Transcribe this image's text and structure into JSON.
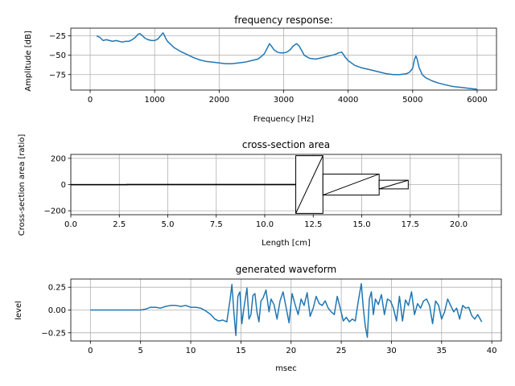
{
  "chart_data": [
    {
      "type": "line",
      "title": "frequency response:",
      "xlabel": "Frequency [Hz]",
      "ylabel": "Amplitude [dB]",
      "xlim": [
        -300,
        6300
      ],
      "ylim": [
        -95,
        -15
      ],
      "xticks": [
        0,
        1000,
        2000,
        3000,
        4000,
        5000,
        6000
      ],
      "xtick_labels": [
        "0",
        "1000",
        "2000",
        "3000",
        "4000",
        "5000",
        "6000"
      ],
      "yticks": [
        -25,
        -50,
        -75
      ],
      "ytick_labels": [
        "−25",
        "−50",
        "−75"
      ],
      "grid": true,
      "color": "#1f77b4",
      "series": [
        {
          "name": "response",
          "x": [
            100,
            150,
            200,
            250,
            300,
            350,
            400,
            450,
            500,
            550,
            600,
            650,
            700,
            740,
            770,
            800,
            850,
            900,
            950,
            1000,
            1050,
            1100,
            1130,
            1150,
            1170,
            1200,
            1250,
            1300,
            1400,
            1500,
            1600,
            1700,
            1800,
            1900,
            2000,
            2100,
            2200,
            2300,
            2400,
            2500,
            2600,
            2650,
            2700,
            2750,
            2780,
            2800,
            2850,
            2900,
            2950,
            3000,
            3050,
            3100,
            3150,
            3200,
            3240,
            3280,
            3320,
            3400,
            3500,
            3600,
            3700,
            3800,
            3850,
            3900,
            3920,
            3950,
            4000,
            4100,
            4200,
            4300,
            4400,
            4500,
            4600,
            4700,
            4800,
            4900,
            4950,
            5000,
            5030,
            5050,
            5070,
            5100,
            5150,
            5200,
            5300,
            5400,
            5500,
            5600,
            5700,
            5800,
            5900,
            6000
          ],
          "y": [
            -25,
            -27,
            -31,
            -30,
            -31,
            -32,
            -31,
            -32,
            -33,
            -32,
            -32,
            -30,
            -27,
            -23,
            -22,
            -24,
            -28,
            -30,
            -31,
            -31,
            -29,
            -24,
            -21,
            -24,
            -28,
            -32,
            -36,
            -40,
            -45,
            -49,
            -53,
            -56,
            -58,
            -59,
            -60,
            -61,
            -61,
            -60,
            -59,
            -57,
            -55,
            -52,
            -48,
            -40,
            -35,
            -37,
            -43,
            -46,
            -47,
            -47,
            -46,
            -43,
            -38,
            -35,
            -38,
            -44,
            -50,
            -54,
            -55,
            -53,
            -51,
            -49,
            -47,
            -46,
            -48,
            -52,
            -57,
            -63,
            -66,
            -68,
            -70,
            -72,
            -74,
            -75,
            -75,
            -74,
            -72,
            -67,
            -55,
            -51,
            -55,
            -66,
            -75,
            -79,
            -83,
            -86,
            -88,
            -90,
            -91,
            -92,
            -93,
            -94
          ]
        }
      ]
    },
    {
      "type": "area",
      "title": "cross-section area",
      "xlabel": "Length [cm]",
      "ylabel": "Cross-section area [ratio]",
      "xlim": [
        0,
        22.2
      ],
      "ylim": [
        -230,
        230
      ],
      "xticks": [
        0,
        2.5,
        5,
        7.5,
        10,
        12.5,
        15,
        17.5,
        20
      ],
      "xtick_labels": [
        "0.0",
        "2.5",
        "5.0",
        "7.5",
        "10.0",
        "12.5",
        "15.0",
        "17.5",
        "20.0"
      ],
      "yticks": [
        200,
        0,
        -200
      ],
      "ytick_labels": [
        "200",
        "0",
        "−200"
      ],
      "grid": true,
      "segments": [
        {
          "x0": 0,
          "x1": 2.9,
          "half_area": 1
        },
        {
          "x0": 2.9,
          "x1": 11.6,
          "half_area": 2
        },
        {
          "x0": 11.6,
          "x1": 13.0,
          "half_area": 220
        },
        {
          "x0": 13.0,
          "x1": 15.9,
          "half_area": 80
        },
        {
          "x0": 15.9,
          "x1": 17.4,
          "half_area": 33
        }
      ]
    },
    {
      "type": "line",
      "title": "generated waveform",
      "xlabel": "msec",
      "ylabel": "level",
      "xlim": [
        -1.95,
        40.95
      ],
      "ylim": [
        -0.34,
        0.34
      ],
      "xticks": [
        0,
        5,
        10,
        15,
        20,
        25,
        30,
        35,
        40
      ],
      "xtick_labels": [
        "0",
        "5",
        "10",
        "15",
        "20",
        "25",
        "30",
        "35",
        "40"
      ],
      "yticks": [
        0.25,
        0.0,
        -0.25
      ],
      "ytick_labels": [
        "0.25",
        "0.00",
        "−0.25"
      ],
      "grid": true,
      "color": "#1f77b4",
      "series": [
        {
          "name": "waveform",
          "x": [
            0,
            5,
            5.5,
            6,
            6.5,
            7,
            7.5,
            8,
            8.5,
            9,
            9.5,
            10,
            10.5,
            11,
            11.5,
            12,
            12.4,
            12.8,
            13.2,
            13.6,
            13.9,
            14.1,
            14.3,
            14.5,
            14.7,
            14.9,
            15.1,
            15.3,
            15.6,
            15.8,
            16,
            16.2,
            16.4,
            16.6,
            16.8,
            17,
            17.2,
            17.5,
            17.8,
            18,
            18.3,
            18.6,
            18.9,
            19.2,
            19.5,
            19.8,
            20.1,
            20.4,
            20.7,
            21,
            21.3,
            21.6,
            21.9,
            22.2,
            22.5,
            22.8,
            23.1,
            23.4,
            23.7,
            24,
            24.3,
            24.6,
            24.9,
            25.2,
            25.5,
            25.8,
            26.1,
            26.4,
            26.7,
            27,
            27.2,
            27.4,
            27.6,
            27.8,
            28,
            28.2,
            28.4,
            28.7,
            29,
            29.3,
            29.6,
            29.9,
            30.2,
            30.5,
            30.8,
            31.1,
            31.4,
            31.7,
            32,
            32.3,
            32.6,
            32.9,
            33.2,
            33.5,
            33.8,
            34.1,
            34.4,
            34.7,
            35,
            35.3,
            35.6,
            35.9,
            36.2,
            36.5,
            36.8,
            37.1,
            37.4,
            37.7,
            38,
            38.3,
            38.6,
            39
          ],
          "y": [
            0,
            0,
            0.01,
            0.03,
            0.03,
            0.02,
            0.04,
            0.05,
            0.05,
            0.04,
            0.05,
            0.03,
            0.03,
            0.02,
            -0.01,
            -0.05,
            -0.1,
            -0.12,
            -0.11,
            -0.13,
            0.1,
            0.28,
            -0.03,
            -0.28,
            0.15,
            0.2,
            -0.15,
            0.02,
            0.24,
            -0.1,
            -0.05,
            0.16,
            0.18,
            -0.02,
            -0.13,
            0.1,
            0.13,
            0.22,
            -0.02,
            0.12,
            0.06,
            -0.1,
            0.1,
            0.2,
            0.03,
            -0.14,
            0.18,
            0.06,
            -0.05,
            0.12,
            0.05,
            0.19,
            -0.07,
            0.02,
            0.15,
            0.07,
            0.05,
            0.1,
            0.02,
            -0.02,
            -0.05,
            0.15,
            0.02,
            -0.12,
            -0.08,
            -0.13,
            -0.1,
            -0.12,
            0.1,
            0.29,
            0.02,
            -0.18,
            -0.3,
            0.12,
            0.2,
            -0.05,
            0.12,
            0.06,
            0.17,
            -0.05,
            0.12,
            0.1,
            0.02,
            -0.12,
            0.15,
            -0.12,
            0.11,
            0.05,
            0.2,
            -0.05,
            0.07,
            0.02,
            0.1,
            0.12,
            0.05,
            -0.15,
            0.1,
            0.05,
            -0.1,
            -0.02,
            0.12,
            0.05,
            -0.02,
            0.02,
            -0.1,
            0.05,
            0.02,
            0.03,
            -0.06,
            -0.1,
            -0.05,
            -0.13
          ]
        }
      ]
    }
  ]
}
